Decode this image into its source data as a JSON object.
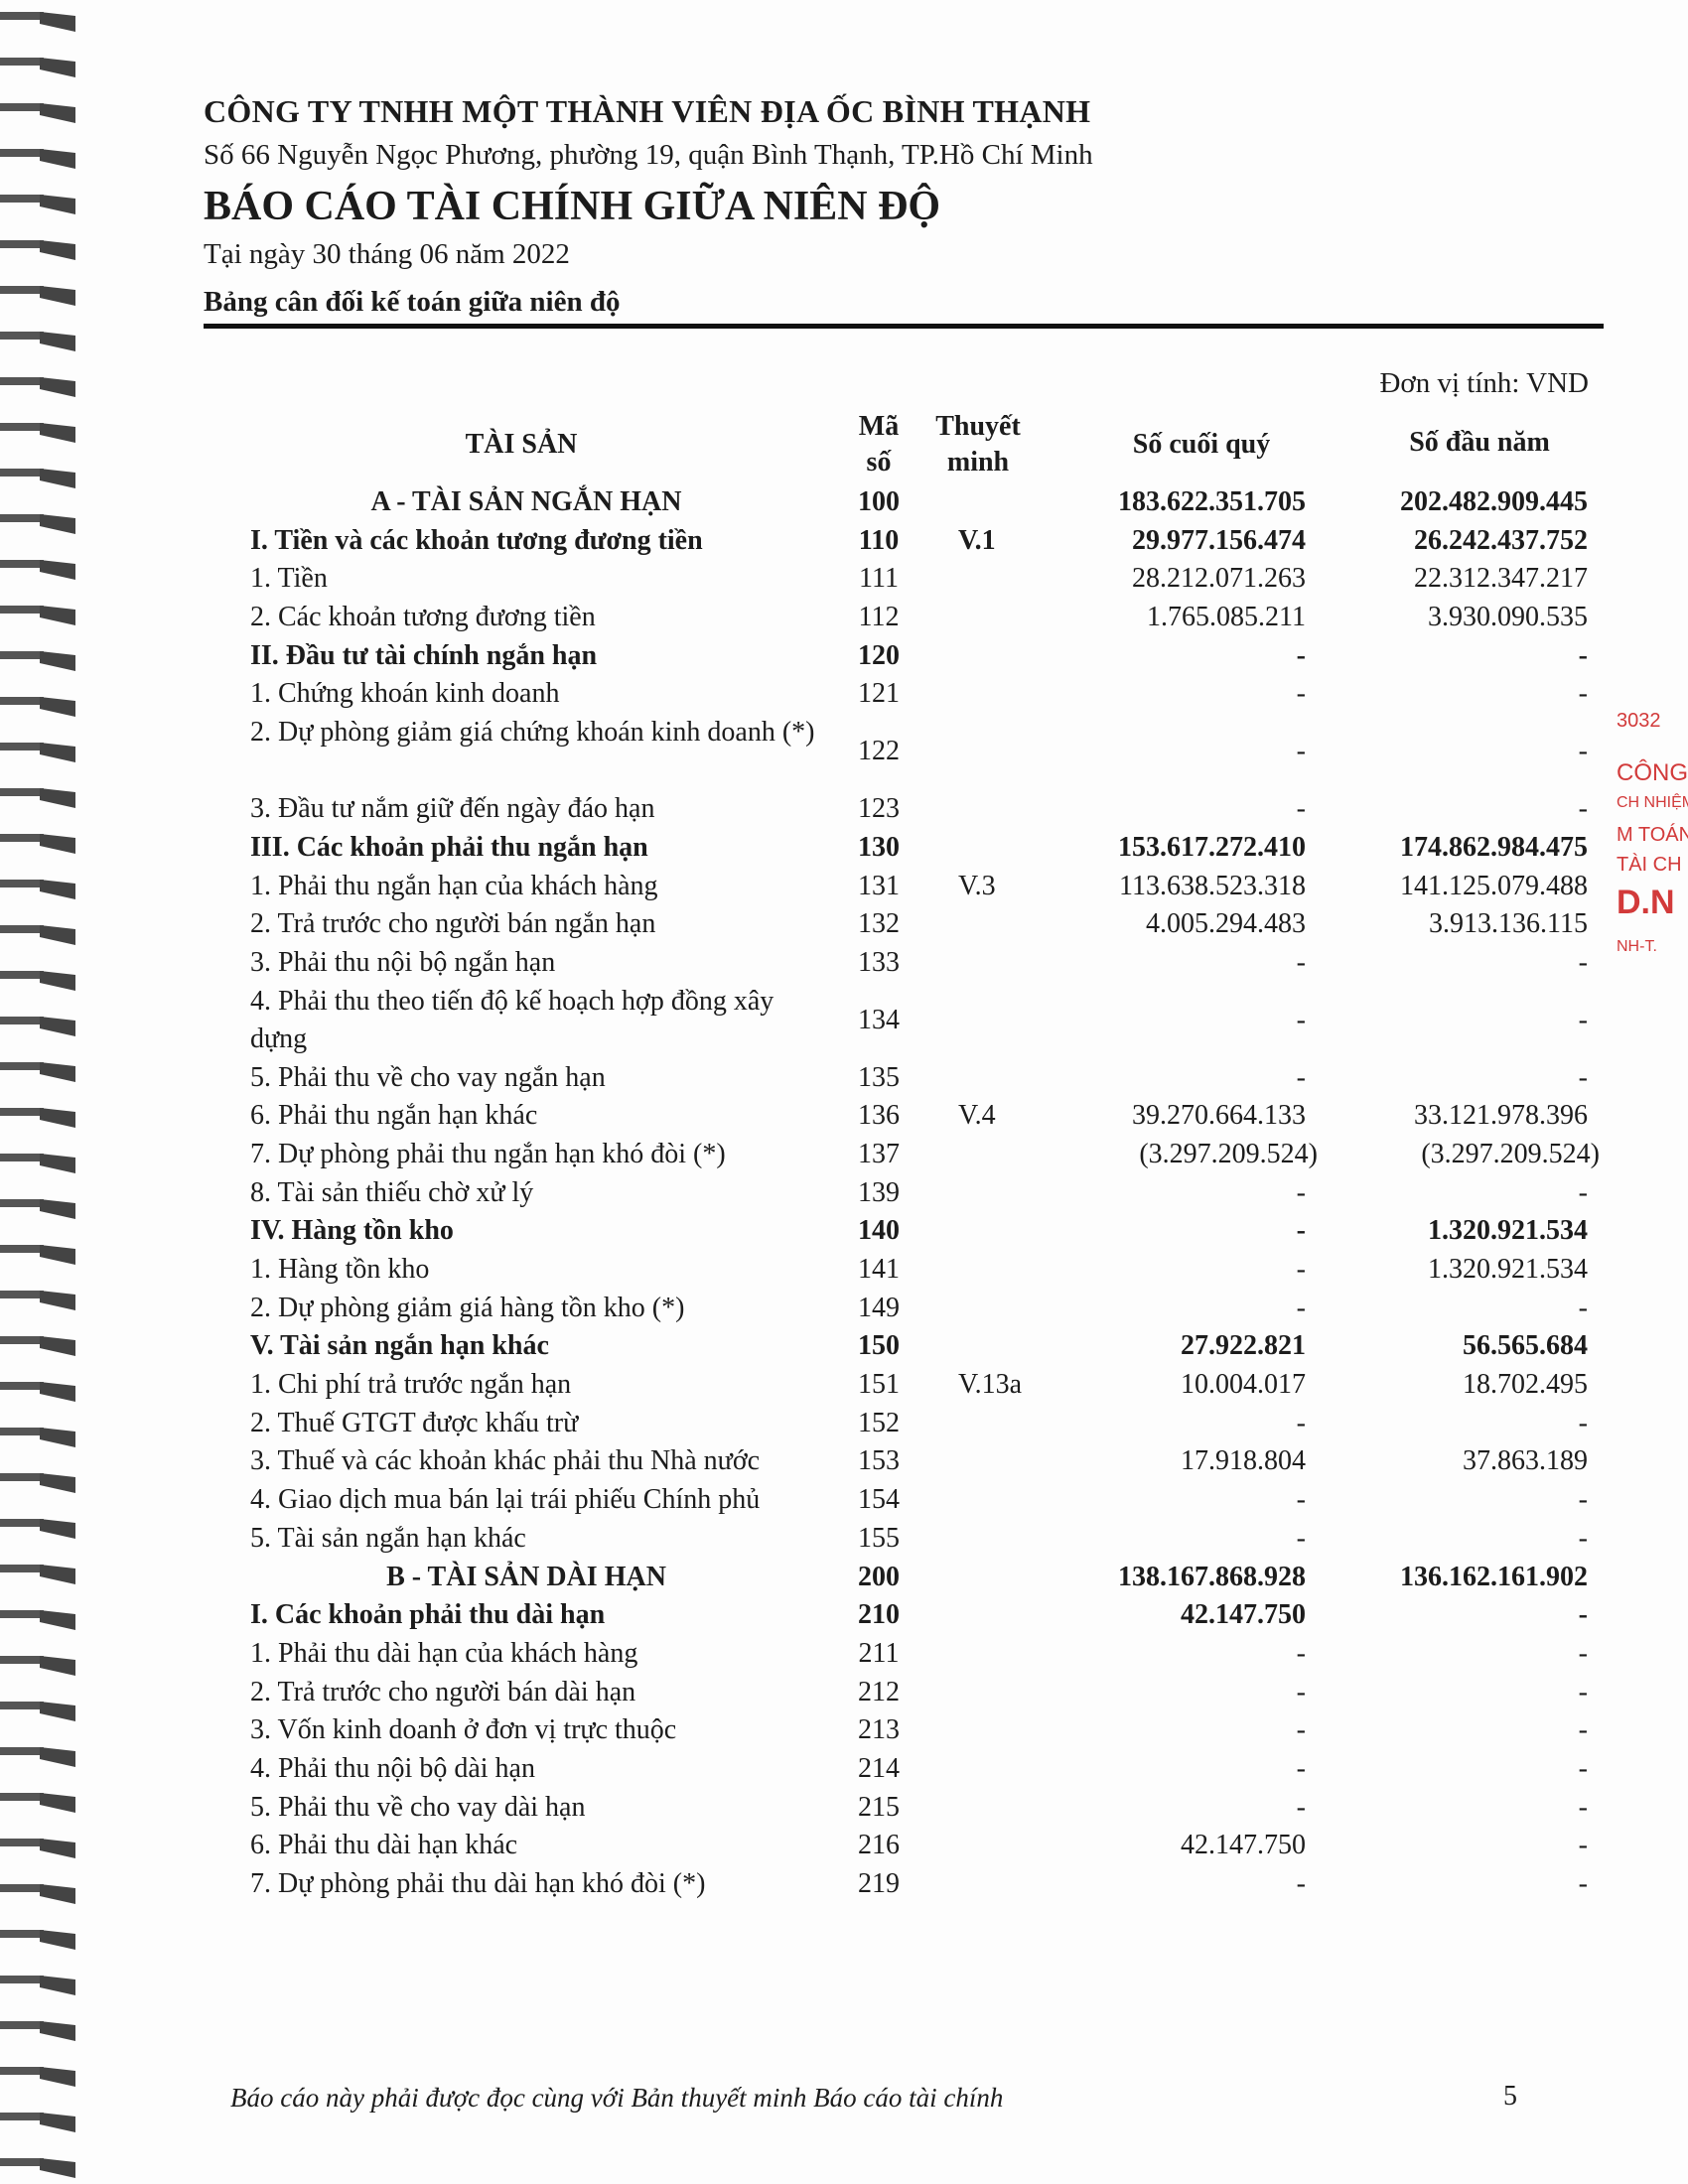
{
  "header": {
    "company": "CÔNG TY TNHH MỘT THÀNH VIÊN ĐỊA ỐC BÌNH THẠNH",
    "address": "Số 66 Nguyễn Ngọc Phương, phường 19, quận Bình Thạnh, TP.Hồ Chí Minh",
    "title": "BÁO CÁO TÀI CHÍNH GIỮA NIÊN ĐỘ",
    "date": "Tại ngày 30 tháng 06 năm 2022",
    "subtitle": "Bảng cân đối kế toán giữa niên độ"
  },
  "unit": "Đơn vị tính: VND",
  "columns": {
    "asset": "TÀI SẢN",
    "code_line1": "Mã",
    "code_line2": "số",
    "note_line1": "Thuyết",
    "note_line2": "minh",
    "end_quarter": "Số cuối quý",
    "begin_year": "Số đầu năm"
  },
  "rows": [
    {
      "label": "A - TÀI SẢN NGẮN HẠN",
      "code": "100",
      "note": "",
      "end": "183.622.351.705",
      "begin": "202.482.909.445",
      "style": "section"
    },
    {
      "label": "I. Tiền và các khoản tương đương tiền",
      "code": "110",
      "note": "V.1",
      "end": "29.977.156.474",
      "begin": "26.242.437.752",
      "style": "bold"
    },
    {
      "label": "1. Tiền",
      "code": "111",
      "note": "",
      "end": "28.212.071.263",
      "begin": "22.312.347.217"
    },
    {
      "label": "2. Các khoản tương đương tiền",
      "code": "112",
      "note": "",
      "end": "1.765.085.211",
      "begin": "3.930.090.535"
    },
    {
      "label": "II. Đầu tư tài chính ngắn hạn",
      "code": "120",
      "note": "",
      "end": "-",
      "begin": "-",
      "style": "bold"
    },
    {
      "label": "1. Chứng khoán kinh doanh",
      "code": "121",
      "note": "",
      "end": "-",
      "begin": "-"
    },
    {
      "label": "2. Dự phòng giảm giá chứng khoán kinh doanh (*)",
      "code": "122",
      "note": "",
      "end": "-",
      "begin": "-",
      "two": true
    },
    {
      "label": "3. Đầu tư nắm giữ đến ngày đáo hạn",
      "code": "123",
      "note": "",
      "end": "-",
      "begin": "-"
    },
    {
      "label": "III. Các khoản phải thu ngắn hạn",
      "code": "130",
      "note": "",
      "end": "153.617.272.410",
      "begin": "174.862.984.475",
      "style": "bold"
    },
    {
      "label": "1. Phải thu ngắn hạn của khách hàng",
      "code": "131",
      "note": "V.3",
      "end": "113.638.523.318",
      "begin": "141.125.079.488"
    },
    {
      "label": "2. Trả trước cho người bán ngắn hạn",
      "code": "132",
      "note": "",
      "end": "4.005.294.483",
      "begin": "3.913.136.115"
    },
    {
      "label": "3. Phải thu nội bộ ngắn hạn",
      "code": "133",
      "note": "",
      "end": "-",
      "begin": "-"
    },
    {
      "label": "4. Phải thu theo tiến độ kế hoạch hợp đồng xây dựng",
      "code": "134",
      "note": "",
      "end": "-",
      "begin": "-",
      "two": true
    },
    {
      "label": "5. Phải thu về cho vay ngắn hạn",
      "code": "135",
      "note": "",
      "end": "-",
      "begin": "-"
    },
    {
      "label": "6. Phải thu ngắn hạn khác",
      "code": "136",
      "note": "V.4",
      "end": "39.270.664.133",
      "begin": "33.121.978.396"
    },
    {
      "label": "7. Dự phòng phải thu ngắn hạn khó đòi (*)",
      "code": "137",
      "note": "",
      "end": "(3.297.209.524)",
      "begin": "(3.297.209.524)",
      "paren": true
    },
    {
      "label": "8. Tài sản thiếu chờ xử lý",
      "code": "139",
      "note": "",
      "end": "-",
      "begin": "-"
    },
    {
      "label": "IV. Hàng tồn kho",
      "code": "140",
      "note": "",
      "end": "-",
      "begin": "1.320.921.534",
      "style": "bold"
    },
    {
      "label": "1. Hàng tồn kho",
      "code": "141",
      "note": "",
      "end": "-",
      "begin": "1.320.921.534"
    },
    {
      "label": "2. Dự phòng giảm giá hàng tồn kho (*)",
      "code": "149",
      "note": "",
      "end": "-",
      "begin": "-"
    },
    {
      "label": "V. Tài sản ngắn hạn khác",
      "code": "150",
      "note": "",
      "end": "27.922.821",
      "begin": "56.565.684",
      "style": "bold"
    },
    {
      "label": "1. Chi phí trả trước ngắn hạn",
      "code": "151",
      "note": "V.13a",
      "end": "10.004.017",
      "begin": "18.702.495"
    },
    {
      "label": "2. Thuế GTGT được khấu trừ",
      "code": "152",
      "note": "",
      "end": "-",
      "begin": "-"
    },
    {
      "label": "3. Thuế và các khoản khác phải thu Nhà nước",
      "code": "153",
      "note": "",
      "end": "17.918.804",
      "begin": "37.863.189"
    },
    {
      "label": "4. Giao dịch mua bán lại trái phiếu Chính phủ",
      "code": "154",
      "note": "",
      "end": "-",
      "begin": "-"
    },
    {
      "label": "5. Tài sản ngắn hạn khác",
      "code": "155",
      "note": "",
      "end": "-",
      "begin": "-"
    },
    {
      "label": "B - TÀI SẢN DÀI HẠN",
      "code": "200",
      "note": "",
      "end": "138.167.868.928",
      "begin": "136.162.161.902",
      "style": "section"
    },
    {
      "label": "I. Các khoản phải thu dài hạn",
      "code": "210",
      "note": "",
      "end": "42.147.750",
      "begin": "-",
      "style": "bold"
    },
    {
      "label": "1. Phải thu dài hạn của khách hàng",
      "code": "211",
      "note": "",
      "end": "-",
      "begin": "-"
    },
    {
      "label": "2. Trả trước cho người bán dài hạn",
      "code": "212",
      "note": "",
      "end": "-",
      "begin": "-"
    },
    {
      "label": "3. Vốn kinh doanh ở đơn vị trực thuộc",
      "code": "213",
      "note": "",
      "end": "-",
      "begin": "-"
    },
    {
      "label": "4. Phải thu nội bộ dài hạn",
      "code": "214",
      "note": "",
      "end": "-",
      "begin": "-"
    },
    {
      "label": "5. Phải thu về cho vay dài hạn",
      "code": "215",
      "note": "",
      "end": "-",
      "begin": "-"
    },
    {
      "label": "6. Phải thu dài hạn khác",
      "code": "216",
      "note": "",
      "end": "42.147.750",
      "begin": "-"
    },
    {
      "label": "7. Dự phòng phải thu dài hạn khó đòi (*)",
      "code": "219",
      "note": "",
      "end": "-",
      "begin": "-"
    }
  ],
  "footer": {
    "note": "Báo cáo này phải được đọc cùng với Bản thuyết minh Báo cáo tài chính",
    "page_number": "5"
  },
  "stamp": {
    "color": "#d23a3a",
    "fragments": [
      "3032",
      "CÔNG",
      "CH NHIỆM",
      "M TOÁN",
      "TÀI CH",
      "D.N",
      "NH-T."
    ]
  }
}
